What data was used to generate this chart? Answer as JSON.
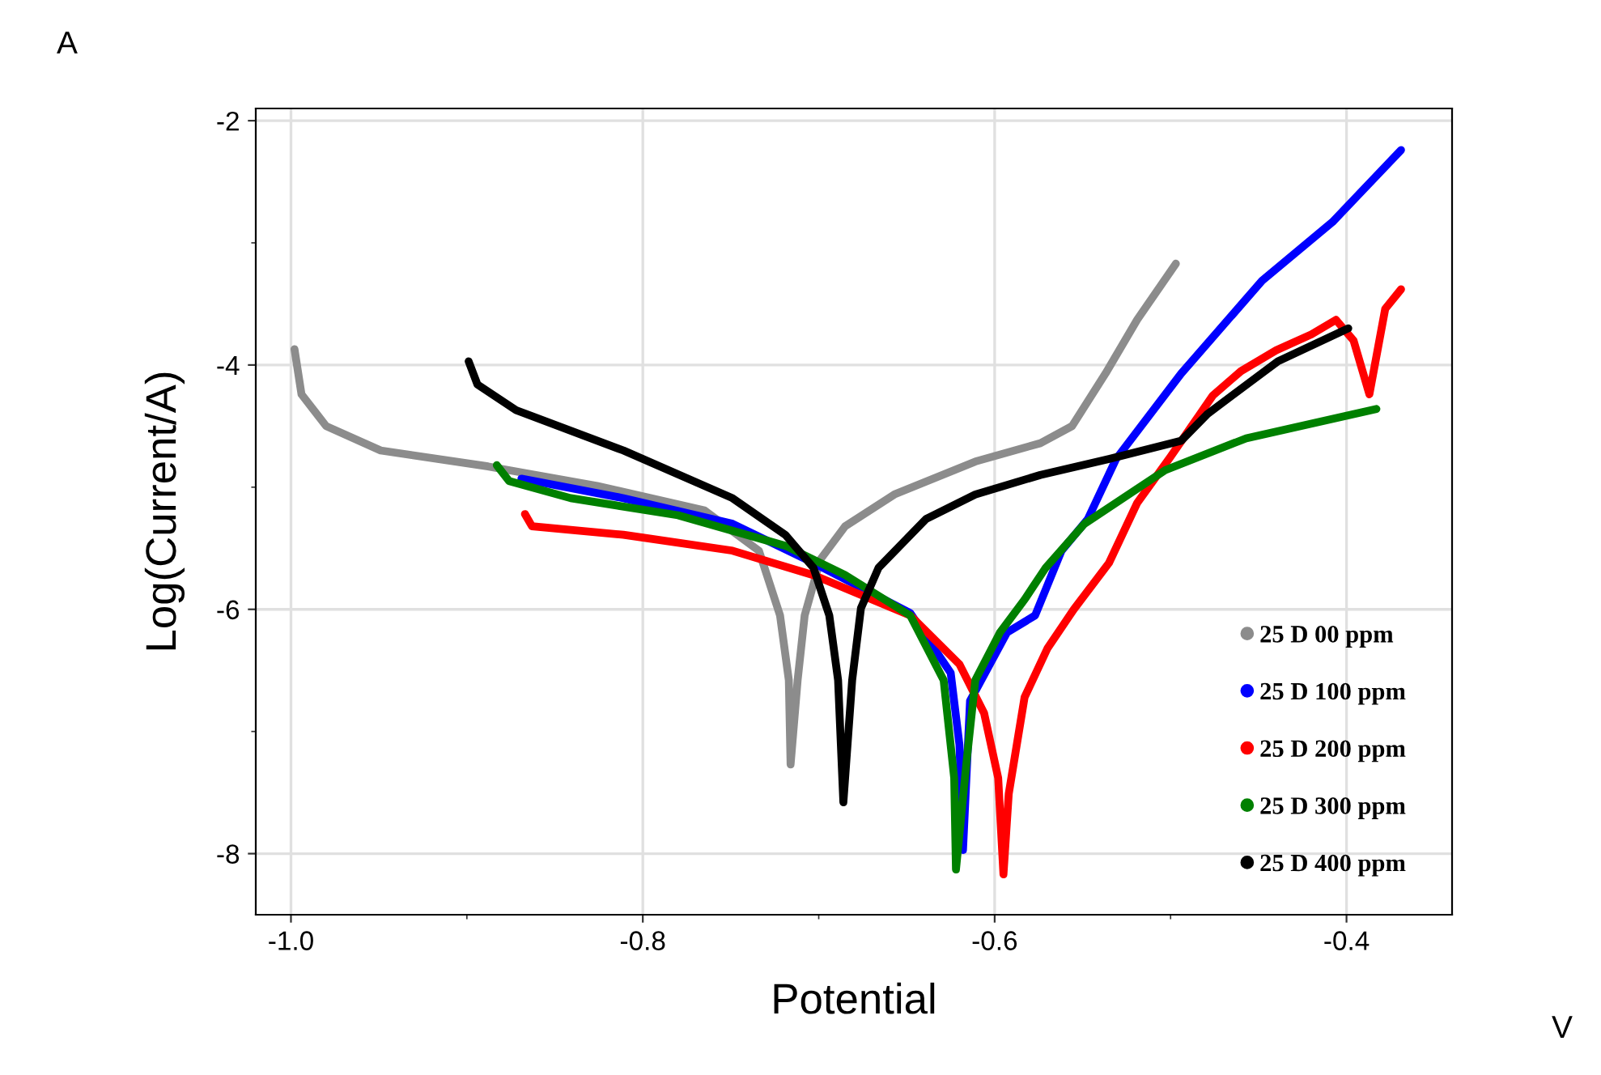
{
  "chart_data": {
    "type": "line",
    "xlabel": "Potential",
    "ylabel": "Log(Current/A)",
    "annotations": [
      "A",
      "V"
    ],
    "xlim": [
      -1.02,
      -0.34
    ],
    "ylim": [
      -8.5,
      -1.9
    ],
    "xticks": [
      {
        "value": -1.0,
        "label": "-1.0"
      },
      {
        "value": -0.9,
        "label": null
      },
      {
        "value": -0.8,
        "label": "-0.8"
      },
      {
        "value": -0.7,
        "label": null
      },
      {
        "value": -0.6,
        "label": "-0.6"
      },
      {
        "value": -0.5,
        "label": null
      },
      {
        "value": -0.4,
        "label": "-0.4"
      }
    ],
    "yticks": [
      -2,
      {
        "value": -3,
        "label": null
      },
      -4,
      {
        "value": -5,
        "label": null
      },
      -6,
      {
        "value": -7,
        "label": null
      },
      -8
    ],
    "grid": true,
    "legend": "bottom right",
    "line_style": "solid",
    "series": [
      {
        "name": "25 D 00 ppm",
        "color": "#8c8c8c",
        "x": [
          -0.998,
          -0.994,
          -0.98,
          -0.949,
          -0.888,
          -0.826,
          -0.765,
          -0.734,
          -0.722,
          -0.717,
          -0.716,
          -0.712,
          -0.708,
          -0.699,
          -0.685,
          -0.657,
          -0.611,
          -0.574,
          -0.556,
          -0.537,
          -0.519,
          -0.497
        ],
        "values": [
          -3.87,
          -4.24,
          -4.5,
          -4.7,
          -4.83,
          -4.99,
          -5.19,
          -5.52,
          -6.05,
          -6.58,
          -7.27,
          -6.58,
          -6.05,
          -5.59,
          -5.32,
          -5.06,
          -4.79,
          -4.64,
          -4.5,
          -4.07,
          -3.63,
          -3.17
        ]
      },
      {
        "name": "25 D 100 ppm",
        "color": "#0000ff",
        "x": [
          -0.869,
          -0.811,
          -0.749,
          -0.703,
          -0.648,
          -0.625,
          -0.62,
          -0.618,
          -0.614,
          -0.593,
          -0.577,
          -0.562,
          -0.547,
          -0.531,
          -0.494,
          -0.448,
          -0.408,
          -0.369
        ],
        "values": [
          -4.93,
          -5.09,
          -5.3,
          -5.62,
          -6.03,
          -6.52,
          -7.11,
          -7.97,
          -6.75,
          -6.19,
          -6.05,
          -5.52,
          -5.26,
          -4.77,
          -4.07,
          -3.31,
          -2.83,
          -2.24
        ]
      },
      {
        "name": "25 D 200 ppm",
        "color": "#ff0000",
        "x": [
          -0.867,
          -0.863,
          -0.811,
          -0.749,
          -0.703,
          -0.648,
          -0.62,
          -0.606,
          -0.598,
          -0.595,
          -0.592,
          -0.583,
          -0.57,
          -0.555,
          -0.535,
          -0.519,
          -0.5,
          -0.488,
          -0.476,
          -0.46,
          -0.44,
          -0.42,
          -0.406,
          -0.396,
          -0.387,
          -0.378,
          -0.369
        ],
        "values": [
          -5.22,
          -5.32,
          -5.39,
          -5.52,
          -5.72,
          -6.05,
          -6.45,
          -6.85,
          -7.38,
          -8.17,
          -7.51,
          -6.72,
          -6.32,
          -6.0,
          -5.62,
          -5.13,
          -4.75,
          -4.5,
          -4.25,
          -4.05,
          -3.88,
          -3.75,
          -3.63,
          -3.8,
          -4.24,
          -3.54,
          -3.38
        ]
      },
      {
        "name": "25 D 300 ppm",
        "color": "#008000",
        "x": [
          -0.883,
          -0.876,
          -0.841,
          -0.78,
          -0.719,
          -0.685,
          -0.648,
          -0.629,
          -0.623,
          -0.622,
          -0.616,
          -0.611,
          -0.597,
          -0.583,
          -0.571,
          -0.549,
          -0.503,
          -0.457,
          -0.383
        ],
        "values": [
          -4.82,
          -4.95,
          -5.09,
          -5.23,
          -5.48,
          -5.72,
          -6.05,
          -6.58,
          -7.38,
          -8.13,
          -7.25,
          -6.58,
          -6.19,
          -5.92,
          -5.66,
          -5.3,
          -4.86,
          -4.6,
          -4.36
        ]
      },
      {
        "name": "25 D 400 ppm",
        "color": "#000000",
        "x": [
          -0.899,
          -0.894,
          -0.872,
          -0.811,
          -0.749,
          -0.719,
          -0.703,
          -0.694,
          -0.689,
          -0.686,
          -0.681,
          -0.676,
          -0.666,
          -0.639,
          -0.611,
          -0.574,
          -0.535,
          -0.494,
          -0.479,
          -0.439,
          -0.399
        ],
        "values": [
          -3.97,
          -4.16,
          -4.37,
          -4.7,
          -5.09,
          -5.39,
          -5.66,
          -6.05,
          -6.58,
          -7.58,
          -6.58,
          -5.99,
          -5.66,
          -5.26,
          -5.06,
          -4.9,
          -4.77,
          -4.62,
          -4.4,
          -3.97,
          -3.7
        ]
      }
    ]
  }
}
